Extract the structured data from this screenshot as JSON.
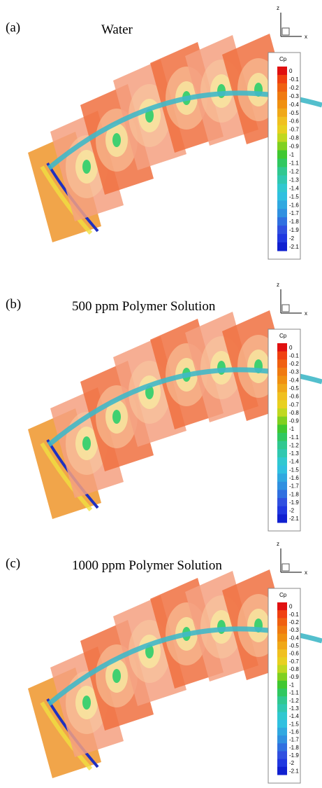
{
  "panels": [
    {
      "label": "(a)",
      "title": "Water",
      "axis_z": "z",
      "axis_x": "x",
      "colorbar": {
        "title": "Cp",
        "ticks": [
          "0",
          "-0.1",
          "-0.2",
          "-0.3",
          "-0.4",
          "-0.5",
          "-0.6",
          "-0.7",
          "-0.8",
          "-0.9",
          "-1",
          "-1.1",
          "-1.2",
          "-1.3",
          "-1.4",
          "-1.5",
          "-1.6",
          "-1.7",
          "-1.8",
          "-1.9",
          "-2",
          "-2.1"
        ]
      }
    },
    {
      "label": "(b)",
      "title": "500 ppm Polymer Solution",
      "axis_z": "z",
      "axis_x": "x",
      "colorbar": {
        "title": "Cp",
        "ticks": [
          "0",
          "-0.1",
          "-0.2",
          "-0.3",
          "-0.4",
          "-0.5",
          "-0.6",
          "-0.7",
          "-0.8",
          "-0.9",
          "-1",
          "-1.1",
          "-1.2",
          "-1.3",
          "-1.4",
          "-1.5",
          "-1.6",
          "-1.7",
          "-1.8",
          "-1.9",
          "-2",
          "-2.1"
        ]
      }
    },
    {
      "label": "(c)",
      "title": "1000 ppm Polymer Solution",
      "axis_z": "z",
      "axis_x": "x",
      "colorbar": {
        "title": "Cp",
        "ticks": [
          "0",
          "-0.1",
          "-0.2",
          "-0.3",
          "-0.4",
          "-0.5",
          "-0.6",
          "-0.7",
          "-0.8",
          "-0.9",
          "-1",
          "-1.1",
          "-1.2",
          "-1.3",
          "-1.4",
          "-1.5",
          "-1.6",
          "-1.7",
          "-1.8",
          "-1.9",
          "-2",
          "-2.1"
        ]
      }
    }
  ]
}
